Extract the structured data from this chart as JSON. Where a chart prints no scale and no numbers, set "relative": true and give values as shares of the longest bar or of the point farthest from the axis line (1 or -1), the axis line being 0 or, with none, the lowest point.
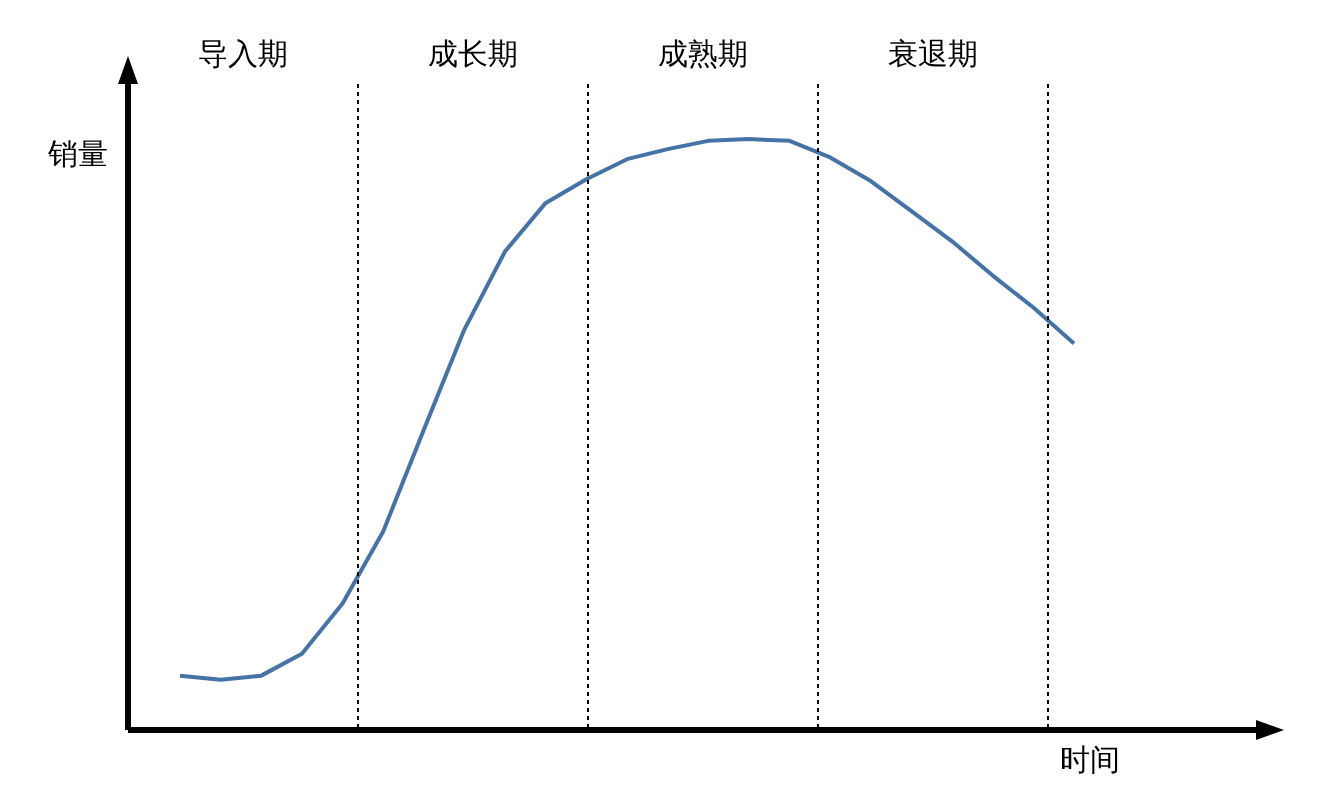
{
  "chart_data": {
    "type": "line",
    "relative": true,
    "xlabel": "时间",
    "ylabel": "销量",
    "marker": "none",
    "line_style": "solid",
    "categories": [
      null,
      null,
      null,
      null,
      null,
      null,
      null,
      null,
      null,
      null,
      null,
      null,
      null,
      null,
      null,
      null,
      null,
      null,
      null,
      null,
      null,
      null,
      null
    ],
    "series": [
      {
        "color": "#4572a7",
        "values": [
          0.092,
          0.085,
          0.092,
          0.129,
          0.214,
          0.336,
          0.508,
          0.678,
          0.81,
          0.892,
          0.932,
          0.966,
          0.983,
          0.997,
          1,
          0.997,
          0.969,
          0.929,
          0.878,
          0.827,
          0.769,
          0.715,
          0.654
        ]
      }
    ],
    "annotations": [
      "导入期",
      "成长期",
      "成熟期",
      "衰退期"
    ]
  }
}
